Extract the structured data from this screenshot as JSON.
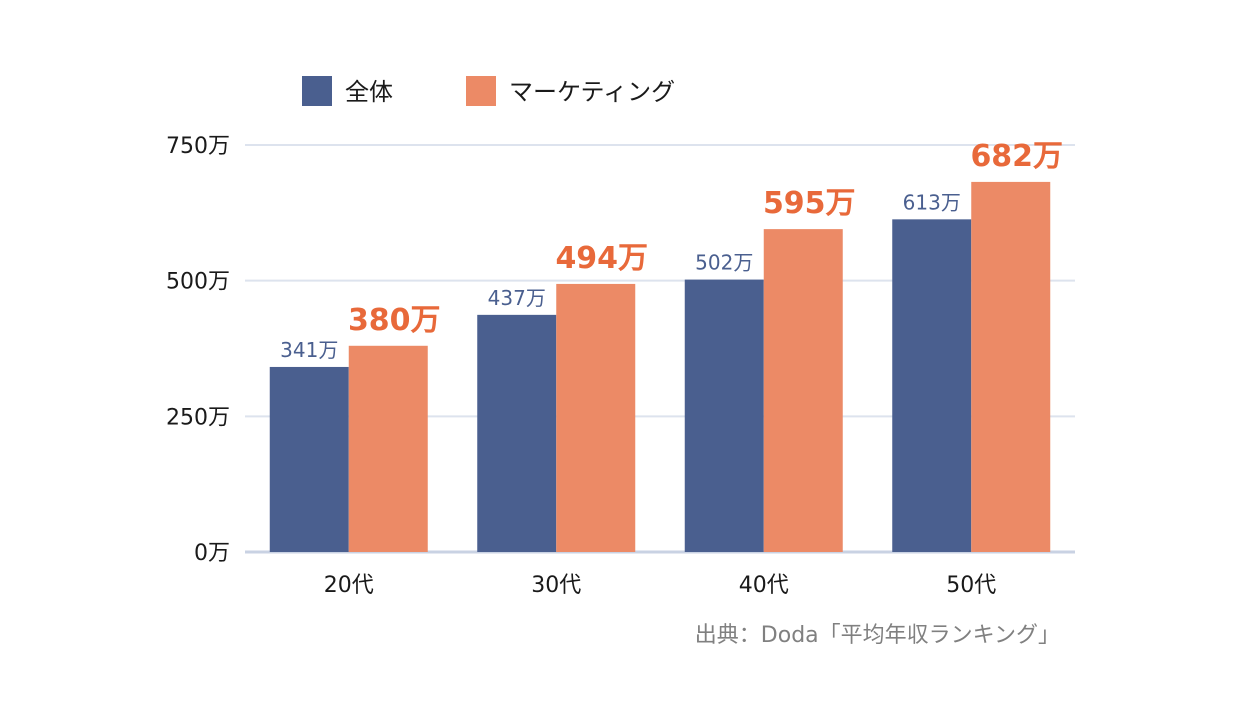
{
  "chart_data": {
    "type": "bar",
    "categories": [
      "20代",
      "30代",
      "40代",
      "50代"
    ],
    "series": [
      {
        "name": "全体",
        "values": [
          341,
          437,
          502,
          613
        ],
        "labels": [
          "341万",
          "437万",
          "502万",
          "613万"
        ],
        "color": "#4a5f8f"
      },
      {
        "name": "マーケティング",
        "values": [
          380,
          494,
          595,
          682
        ],
        "labels": [
          "380万",
          "494万",
          "595万",
          "682万"
        ],
        "color": "#ec8a66"
      }
    ],
    "ylim": [
      0,
      750
    ],
    "yticks": [
      0,
      250,
      500,
      750
    ],
    "ytick_labels": [
      "0万",
      "250万",
      "500万",
      "750万"
    ],
    "grid": true,
    "legend_position": "top-left",
    "source": "出典：Doda「平均年収ランキング」"
  },
  "colors": {
    "grid": "#dde3ee",
    "axis": "#c9d2e3",
    "marketing_label": "#e8693a",
    "all_label": "#4a5f8f"
  }
}
